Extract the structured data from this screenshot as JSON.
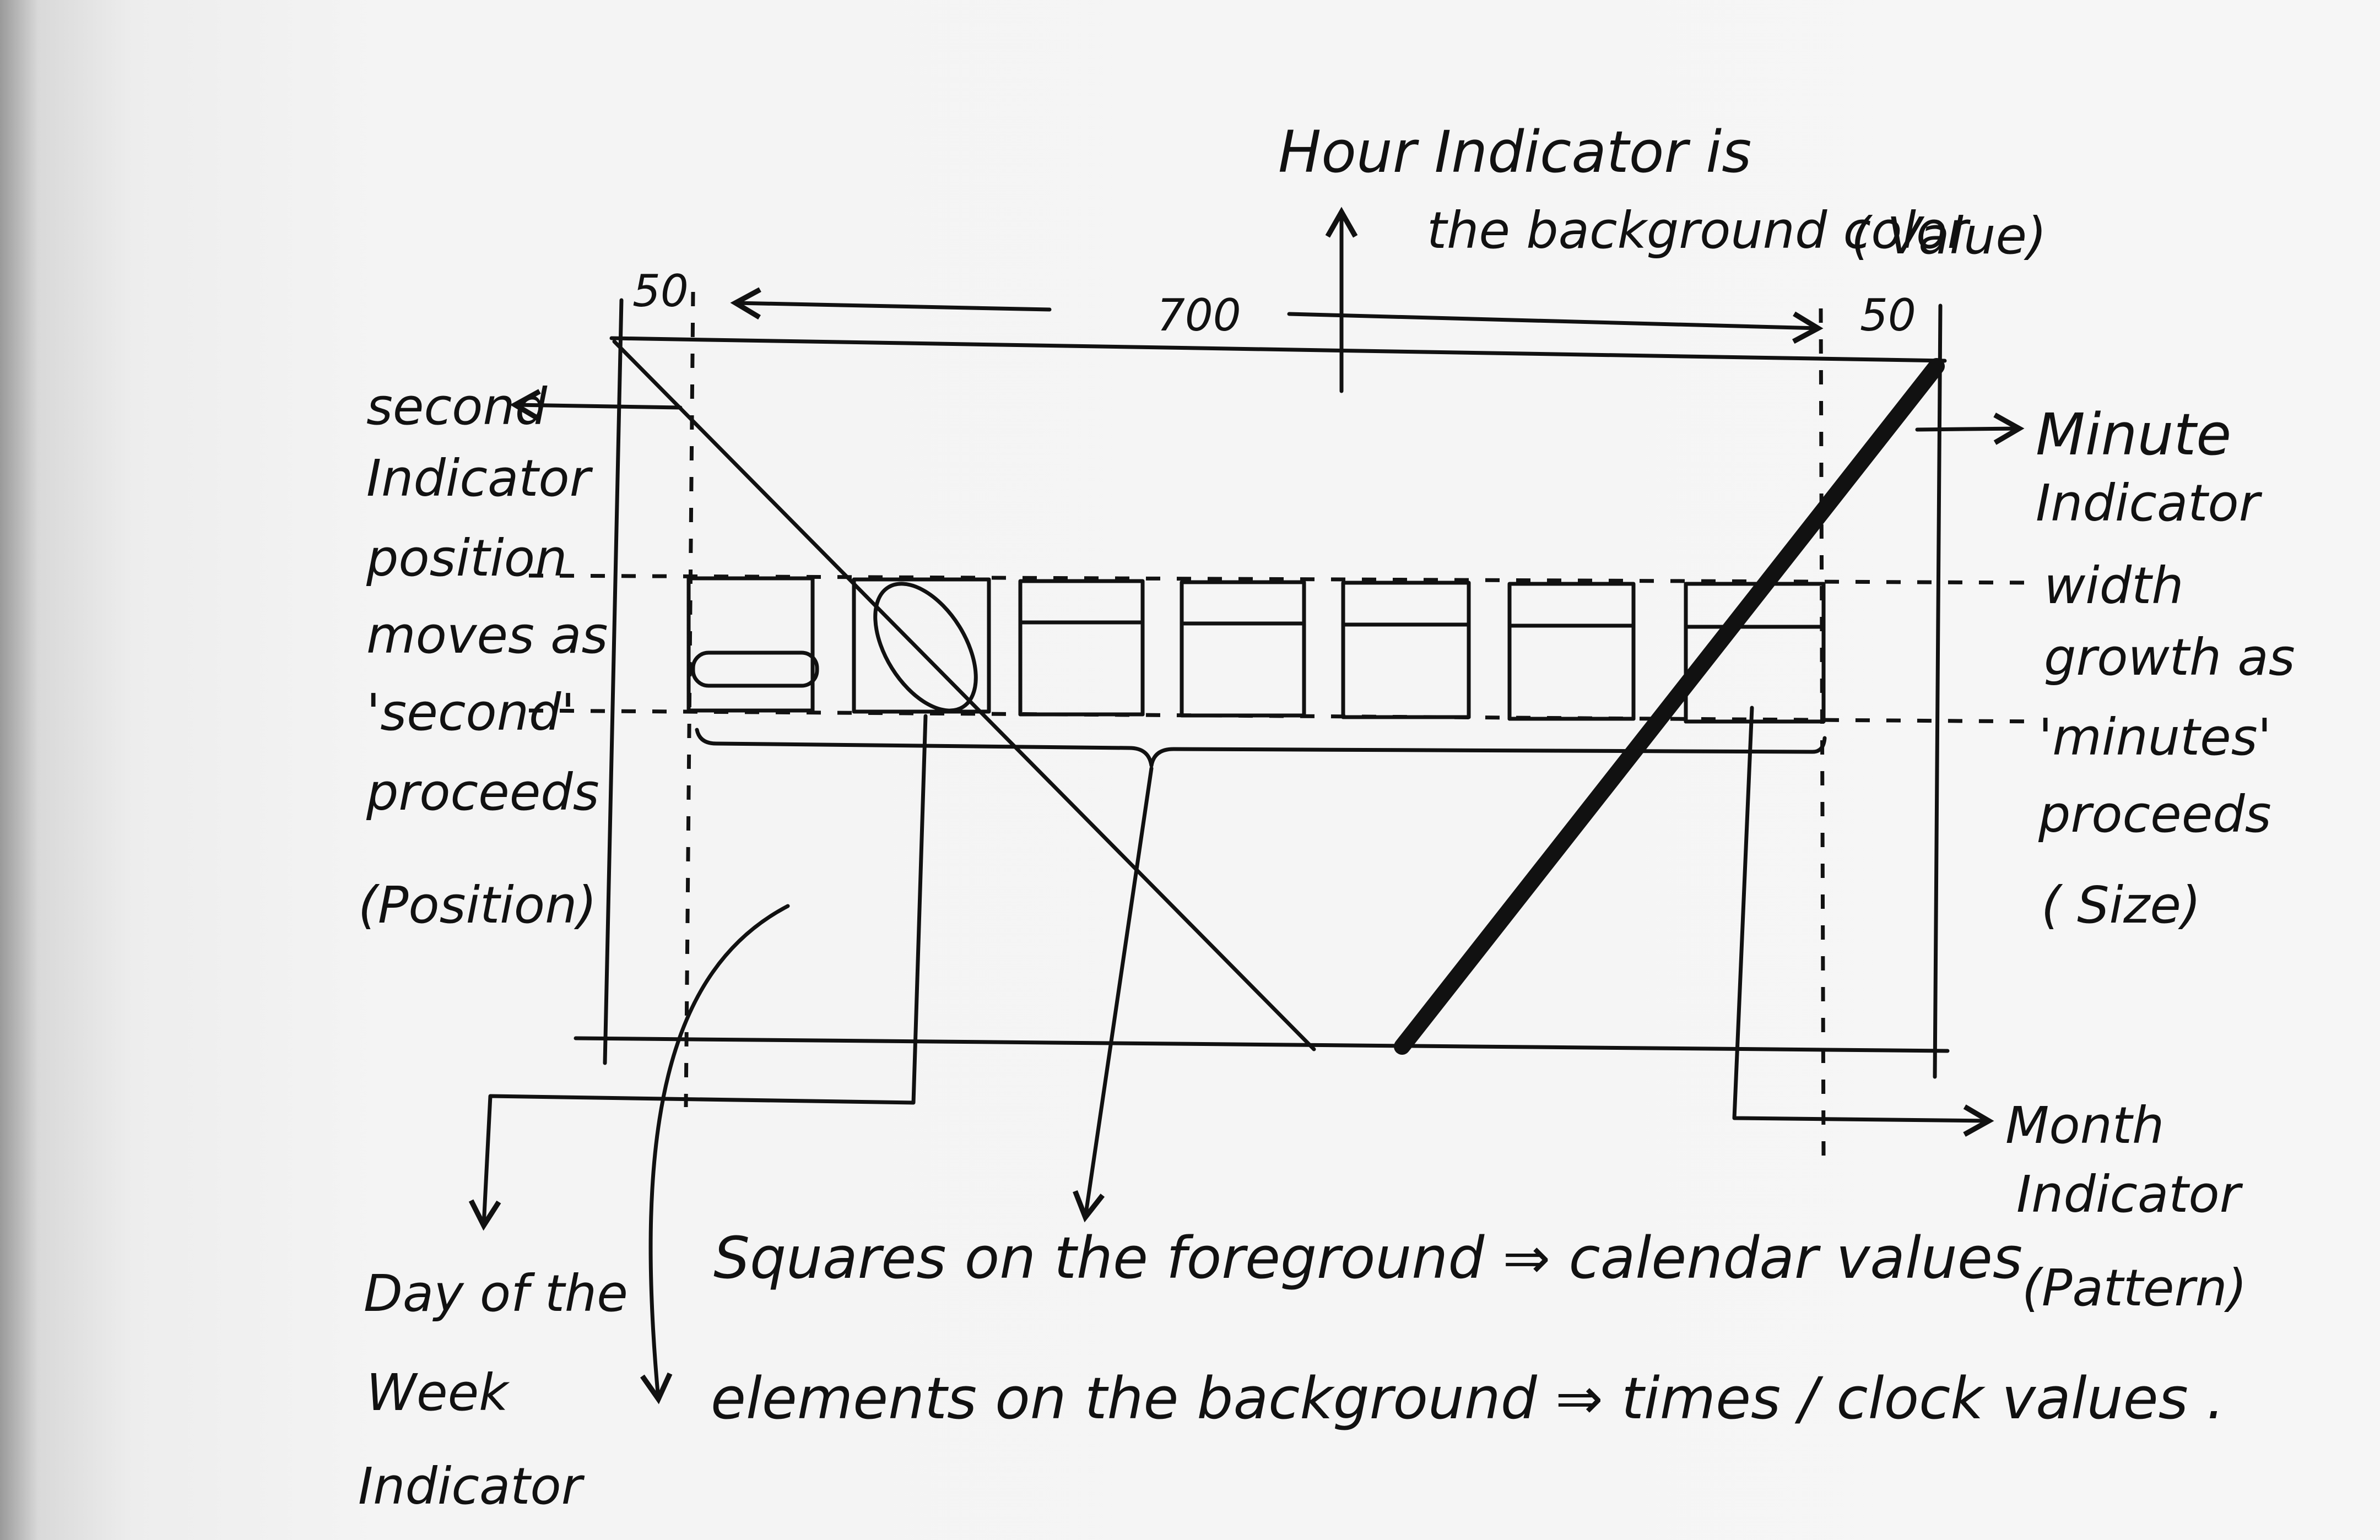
{
  "diagram": {
    "dimensions": {
      "left_margin": "50",
      "width": "700",
      "right_margin": "50"
    },
    "hour_indicator": {
      "line1": "Hour Indicator is",
      "line2": "the background color",
      "line3": "( Value)"
    },
    "second_indicator": {
      "lines": [
        "second",
        "Indicator",
        "position",
        "moves as",
        "'second'",
        "proceeds",
        "(Position)"
      ]
    },
    "minute_indicator": {
      "lines": [
        "Minute",
        "Indicator",
        "width",
        "growth as",
        "'minutes'",
        "proceeds",
        "( Size)"
      ]
    },
    "month_indicator": {
      "lines": [
        "Month",
        "Indicator",
        "(Pattern)"
      ]
    },
    "day_of_week_indicator": {
      "lines": [
        "Day of the",
        "Week",
        "Indicator"
      ]
    },
    "notes": {
      "foreground": "Squares on the foreground ⇒ calendar values",
      "background": "elements on the background ⇒ times / clock values ."
    },
    "square_count": 7
  }
}
